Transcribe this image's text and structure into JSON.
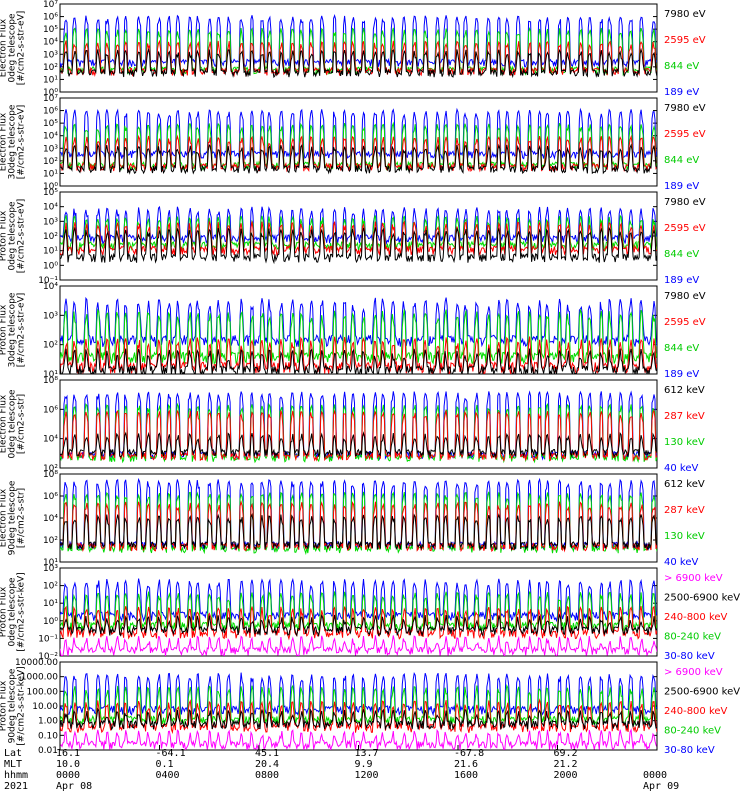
{
  "chart_data": [
    {
      "type": "line",
      "ylabel": [
        "TED",
        "Electron Flux",
        "0deg telescope",
        "[#/cm2-s-str-eV]"
      ],
      "yscale": "log",
      "ytick_labels": [
        "10⁰",
        "10¹",
        "10²",
        "10³",
        "10⁴",
        "10⁵",
        "10⁶",
        "10⁷"
      ],
      "ylim": [
        1,
        10000000
      ],
      "series": [
        {
          "name": "7980 eV",
          "color": "#000000",
          "base": 30,
          "peak": 2000
        },
        {
          "name": "2595 eV",
          "color": "#ff0000",
          "base": 40,
          "peak": 10000
        },
        {
          "name": "844 eV",
          "color": "#00dd00",
          "base": 50,
          "peak": 100000
        },
        {
          "name": "189 eV",
          "color": "#0000ff",
          "base": 200,
          "peak": 1000000
        }
      ]
    },
    {
      "type": "line",
      "ylabel": [
        "TED",
        "Electron Flux",
        "30deg telescope",
        "[#/cm2-s-str-eV]"
      ],
      "yscale": "log",
      "ytick_labels": [
        "10⁰",
        "10¹",
        "10²",
        "10³",
        "10⁴",
        "10⁵",
        "10⁶",
        "10⁷"
      ],
      "ylim": [
        1,
        10000000
      ],
      "series": [
        {
          "name": "7980 eV",
          "color": "#000000",
          "base": 20,
          "peak": 1500
        },
        {
          "name": "2595 eV",
          "color": "#ff0000",
          "base": 30,
          "peak": 8000
        },
        {
          "name": "844 eV",
          "color": "#00dd00",
          "base": 40,
          "peak": 80000
        },
        {
          "name": "189 eV",
          "color": "#0000ff",
          "base": 300,
          "peak": 1000000
        }
      ]
    },
    {
      "type": "line",
      "ylabel": [
        "TED",
        "Proton Flux",
        "0deg telescope",
        "[#/cm2-s-str-eV]"
      ],
      "yscale": "log",
      "ytick_labels": [
        "10⁻¹",
        "10⁰",
        "10¹",
        "10²",
        "10³",
        "10⁴",
        "10⁵"
      ],
      "ylim": [
        0.1,
        100000
      ],
      "series": [
        {
          "name": "7980 eV",
          "color": "#000000",
          "base": 3,
          "peak": 300
        },
        {
          "name": "2595 eV",
          "color": "#ff0000",
          "base": 10,
          "peak": 800
        },
        {
          "name": "844 eV",
          "color": "#00dd00",
          "base": 20,
          "peak": 2000
        },
        {
          "name": "189 eV",
          "color": "#0000ff",
          "base": 60,
          "peak": 8000
        }
      ]
    },
    {
      "type": "line",
      "ylabel": [
        "TED",
        "Proton Flux",
        "30deg telescope",
        "[#/cm2-s-str-eV]"
      ],
      "yscale": "log",
      "ytick_labels": [
        "10¹",
        "10²",
        "10³",
        "10⁴"
      ],
      "ylim": [
        3,
        100000
      ],
      "series": [
        {
          "name": "7980 eV",
          "color": "#000000",
          "base": 4,
          "peak": 50
        },
        {
          "name": "2595 eV",
          "color": "#ff0000",
          "base": 6,
          "peak": 200
        },
        {
          "name": "844 eV",
          "color": "#00dd00",
          "base": 20,
          "peak": 5000
        },
        {
          "name": "189 eV",
          "color": "#0000ff",
          "base": 150,
          "peak": 20000
        }
      ]
    },
    {
      "type": "line",
      "ylabel": [
        "MEPED",
        "Electron Flux",
        "0deg telescope",
        "[#/cm2-s-str]"
      ],
      "yscale": "log",
      "ytick_labels": [
        "10²",
        "10⁴",
        "10⁶",
        "10⁸"
      ],
      "ylim": [
        10,
        100000000
      ],
      "series": [
        {
          "name": "612 keV",
          "color": "#000000",
          "base": 150,
          "peak": 5000
        },
        {
          "name": "287 keV",
          "color": "#ff0000",
          "base": 80,
          "peak": 300000
        },
        {
          "name": "130 keV",
          "color": "#00dd00",
          "base": 60,
          "peak": 1000000
        },
        {
          "name": "40 keV",
          "color": "#0000ff",
          "base": 100,
          "peak": 10000000
        }
      ]
    },
    {
      "type": "line",
      "ylabel": [
        "MEPED",
        "Electron Flux",
        "90deg telescope",
        "[#/cm2-s-str]"
      ],
      "yscale": "log",
      "ytick_labels": [
        "10¹",
        "10²",
        "10⁴",
        "10⁶",
        "10⁸"
      ],
      "ylim": [
        10,
        100000000
      ],
      "series": [
        {
          "name": "612 keV",
          "color": "#000000",
          "base": 200,
          "peak": 50000
        },
        {
          "name": "287 keV",
          "color": "#ff0000",
          "base": 150,
          "peak": 500000
        },
        {
          "name": "130 keV",
          "color": "#00dd00",
          "base": 100,
          "peak": 3000000
        },
        {
          "name": "40 keV",
          "color": "#0000ff",
          "base": 200,
          "peak": 30000000
        }
      ]
    },
    {
      "type": "line",
      "ylabel": [
        "MEPED",
        "Proton Flux",
        "0deg telescope",
        "[#/cm2-s-str-keV]"
      ],
      "yscale": "log",
      "ytick_labels": [
        "10⁻²",
        "10⁻¹",
        "10⁰",
        "10¹",
        "10²",
        "10³"
      ],
      "ylim": [
        0.01,
        10000
      ],
      "series": [
        {
          "name": "> 6900 keV",
          "color": "#ff00ff",
          "base": 0.02,
          "peak": 0.2
        },
        {
          "name": "2500-6900 keV",
          "color": "#000000",
          "base": 0.5,
          "peak": 5
        },
        {
          "name": "240-800 keV",
          "color": "#ff0000",
          "base": 0.3,
          "peak": 20
        },
        {
          "name": "80-240 keV",
          "color": "#00dd00",
          "base": 1,
          "peak": 200
        },
        {
          "name": "30-80 keV",
          "color": "#0000ff",
          "base": 5,
          "peak": 1500
        }
      ]
    },
    {
      "type": "line",
      "ylabel": [
        "MEPED",
        "Proton Flux",
        "90deg telescope",
        "[#/cm2-s-str-keV]"
      ],
      "yscale": "log",
      "ytick_labels": [
        "0.01",
        "0.10",
        "1.00",
        "10.00",
        "100.00",
        "1000.00",
        "10000.00"
      ],
      "ylim": [
        0.01,
        10000
      ],
      "series": [
        {
          "name": "> 6900 keV",
          "color": "#ff00ff",
          "base": 0.02,
          "peak": 0.2
        },
        {
          "name": "2500-6900 keV",
          "color": "#000000",
          "base": 0.5,
          "peak": 5
        },
        {
          "name": "240-800 keV",
          "color": "#ff0000",
          "base": 0.3,
          "peak": 20
        },
        {
          "name": "80-240 keV",
          "color": "#00dd00",
          "base": 1,
          "peak": 200
        },
        {
          "name": "30-80 keV",
          "color": "#0000ff",
          "base": 5,
          "peak": 1500
        }
      ]
    }
  ],
  "time_axis": {
    "row_labels": [
      "Lat",
      "MLT",
      "hhmm",
      "2021"
    ],
    "columns": [
      {
        "lat": "16.1",
        "mlt": "10.0",
        "hhmm": "0000",
        "date": "Apr 08"
      },
      {
        "lat": "-64.1",
        "mlt": "0.1",
        "hhmm": "0400",
        "date": ""
      },
      {
        "lat": "45.1",
        "mlt": "20.4",
        "hhmm": "0800",
        "date": ""
      },
      {
        "lat": "13.7",
        "mlt": "9.9",
        "hhmm": "1200",
        "date": ""
      },
      {
        "lat": "-67.8",
        "mlt": "21.6",
        "hhmm": "1600",
        "date": ""
      },
      {
        "lat": "69.2",
        "mlt": "21.2",
        "hhmm": "2000",
        "date": ""
      },
      {
        "lat": "",
        "mlt": "",
        "hhmm": "0000",
        "date": "Apr 09"
      }
    ]
  }
}
